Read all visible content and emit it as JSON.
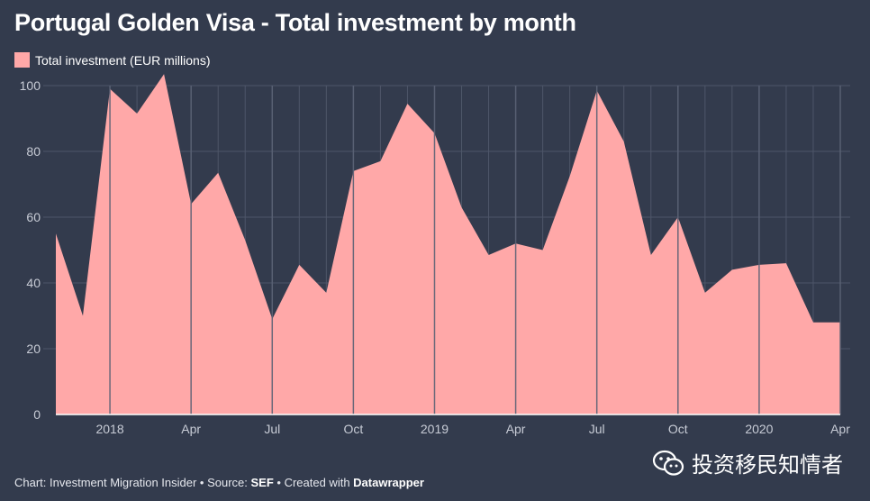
{
  "title": "Portugal Golden Visa - Total investment by month",
  "legend": {
    "label": "Total investment (EUR millions)"
  },
  "footer": {
    "prefix": "Chart: Investment Migration Insider • Source: ",
    "source": "SEF",
    "middle": " • Created with ",
    "tool": "Datawrapper"
  },
  "watermark": {
    "text": "投资移民知情者",
    "icon": "wechat-icon"
  },
  "colors": {
    "background": "#333b4d",
    "area": "#ffa8a8",
    "grid": "#4e5669",
    "axis": "#ffffff",
    "tick": "#c8ccd6"
  },
  "chart_data": {
    "type": "area",
    "title": "Portugal Golden Visa - Total investment by month",
    "xlabel": "",
    "ylabel": "",
    "ylim": [
      0,
      100
    ],
    "grid": true,
    "legend_position": "top-left",
    "yticks": [
      0,
      20,
      40,
      60,
      80,
      100
    ],
    "xticks": [
      {
        "label": "2018",
        "date": "2018-01"
      },
      {
        "label": "Apr",
        "date": "2018-04"
      },
      {
        "label": "Jul",
        "date": "2018-07"
      },
      {
        "label": "Oct",
        "date": "2018-10"
      },
      {
        "label": "2019",
        "date": "2019-01"
      },
      {
        "label": "Apr",
        "date": "2019-04"
      },
      {
        "label": "Jul",
        "date": "2019-07"
      },
      {
        "label": "Oct",
        "date": "2019-10"
      },
      {
        "label": "2020",
        "date": "2020-01"
      },
      {
        "label": "Apr",
        "date": "2020-04"
      }
    ],
    "x": [
      "2017-11",
      "2017-12",
      "2018-01",
      "2018-02",
      "2018-03",
      "2018-04",
      "2018-05",
      "2018-06",
      "2018-07",
      "2018-08",
      "2018-09",
      "2018-10",
      "2018-11",
      "2018-12",
      "2019-01",
      "2019-02",
      "2019-03",
      "2019-04",
      "2019-05",
      "2019-06",
      "2019-07",
      "2019-08",
      "2019-09",
      "2019-10",
      "2019-11",
      "2019-12",
      "2020-01",
      "2020-02",
      "2020-03",
      "2020-04"
    ],
    "series": [
      {
        "name": "Total investment (EUR millions)",
        "values": [
          55,
          30,
          99,
          91.5,
          103.5,
          64,
          73.5,
          53,
          29,
          45.5,
          37,
          74,
          77,
          94.5,
          85.5,
          63,
          48.5,
          52,
          50,
          72.5,
          98.5,
          83,
          48.5,
          60,
          37,
          44,
          45.5,
          46,
          28,
          28
        ]
      }
    ]
  }
}
